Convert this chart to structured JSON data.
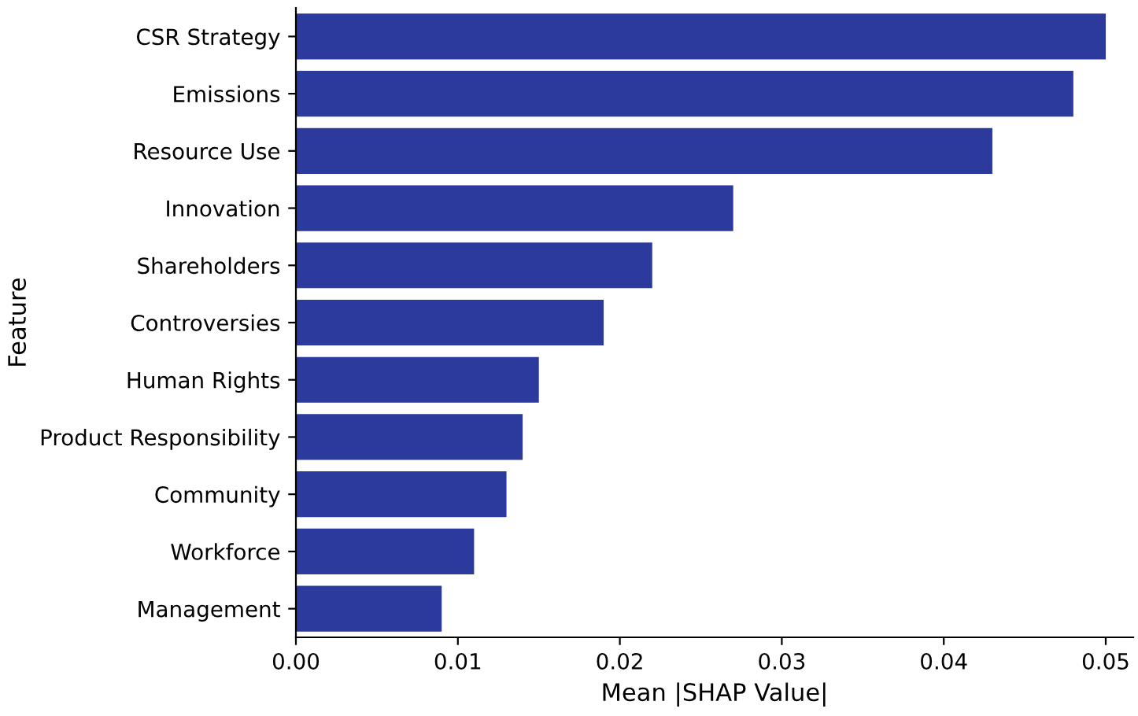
{
  "chart_data": {
    "type": "bar",
    "orientation": "horizontal",
    "xlabel": "Mean |SHAP Value|",
    "ylabel": "Feature",
    "categories": [
      "CSR Strategy",
      "Emissions",
      "Resource Use",
      "Innovation",
      "Shareholders",
      "Controversies",
      "Human Rights",
      "Product Responsibility",
      "Community",
      "Workforce",
      "Management"
    ],
    "values": [
      0.05,
      0.048,
      0.043,
      0.027,
      0.022,
      0.019,
      0.015,
      0.014,
      0.013,
      0.011,
      0.009
    ],
    "color": "#2b3a9c",
    "xlim": [
      0,
      0.0517
    ],
    "xticks": [
      {
        "value": 0,
        "label": "0.00"
      },
      {
        "value": 0.01,
        "label": "0.01"
      },
      {
        "value": 0.02,
        "label": "0.02"
      },
      {
        "value": 0.03,
        "label": "0.03"
      },
      {
        "value": 0.04,
        "label": "0.04"
      },
      {
        "value": 0.05,
        "label": "0.05"
      }
    ],
    "grid": false
  }
}
